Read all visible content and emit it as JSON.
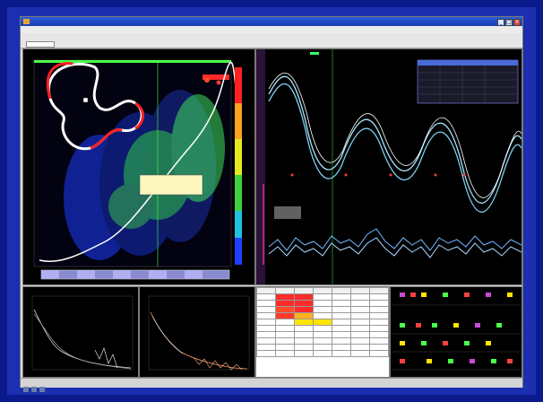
{
  "window": {
    "title": "",
    "buttons": {
      "minimize": "_",
      "maximize": "□",
      "close": "×"
    }
  },
  "menu": {
    "items": []
  },
  "toolbar": {
    "info_text": ""
  },
  "status": {
    "text": ""
  },
  "popup": {
    "title": "",
    "line1": "",
    "line2": ""
  },
  "colors": {
    "background": "#0a1a8c",
    "frame": "#1b2fb0",
    "window_chrome": "#d9d9d9",
    "plot_background": "#000000",
    "trace_cyan": "#a8e8ff",
    "trace_white": "#ffffff",
    "scatter_green": "#4cff4c",
    "scatter_blue": "#2b5cff",
    "highlight_red": "#ff2a2a",
    "highlight_yellow": "#ffe600",
    "table_header": "#ffffff",
    "table_cell": "#f2f2f2"
  },
  "icons": [
    "app-icon",
    "minimize-icon",
    "maximize-icon",
    "close-icon",
    "track-map-icon",
    "toolbar-button-icon",
    "status-icon"
  ]
}
